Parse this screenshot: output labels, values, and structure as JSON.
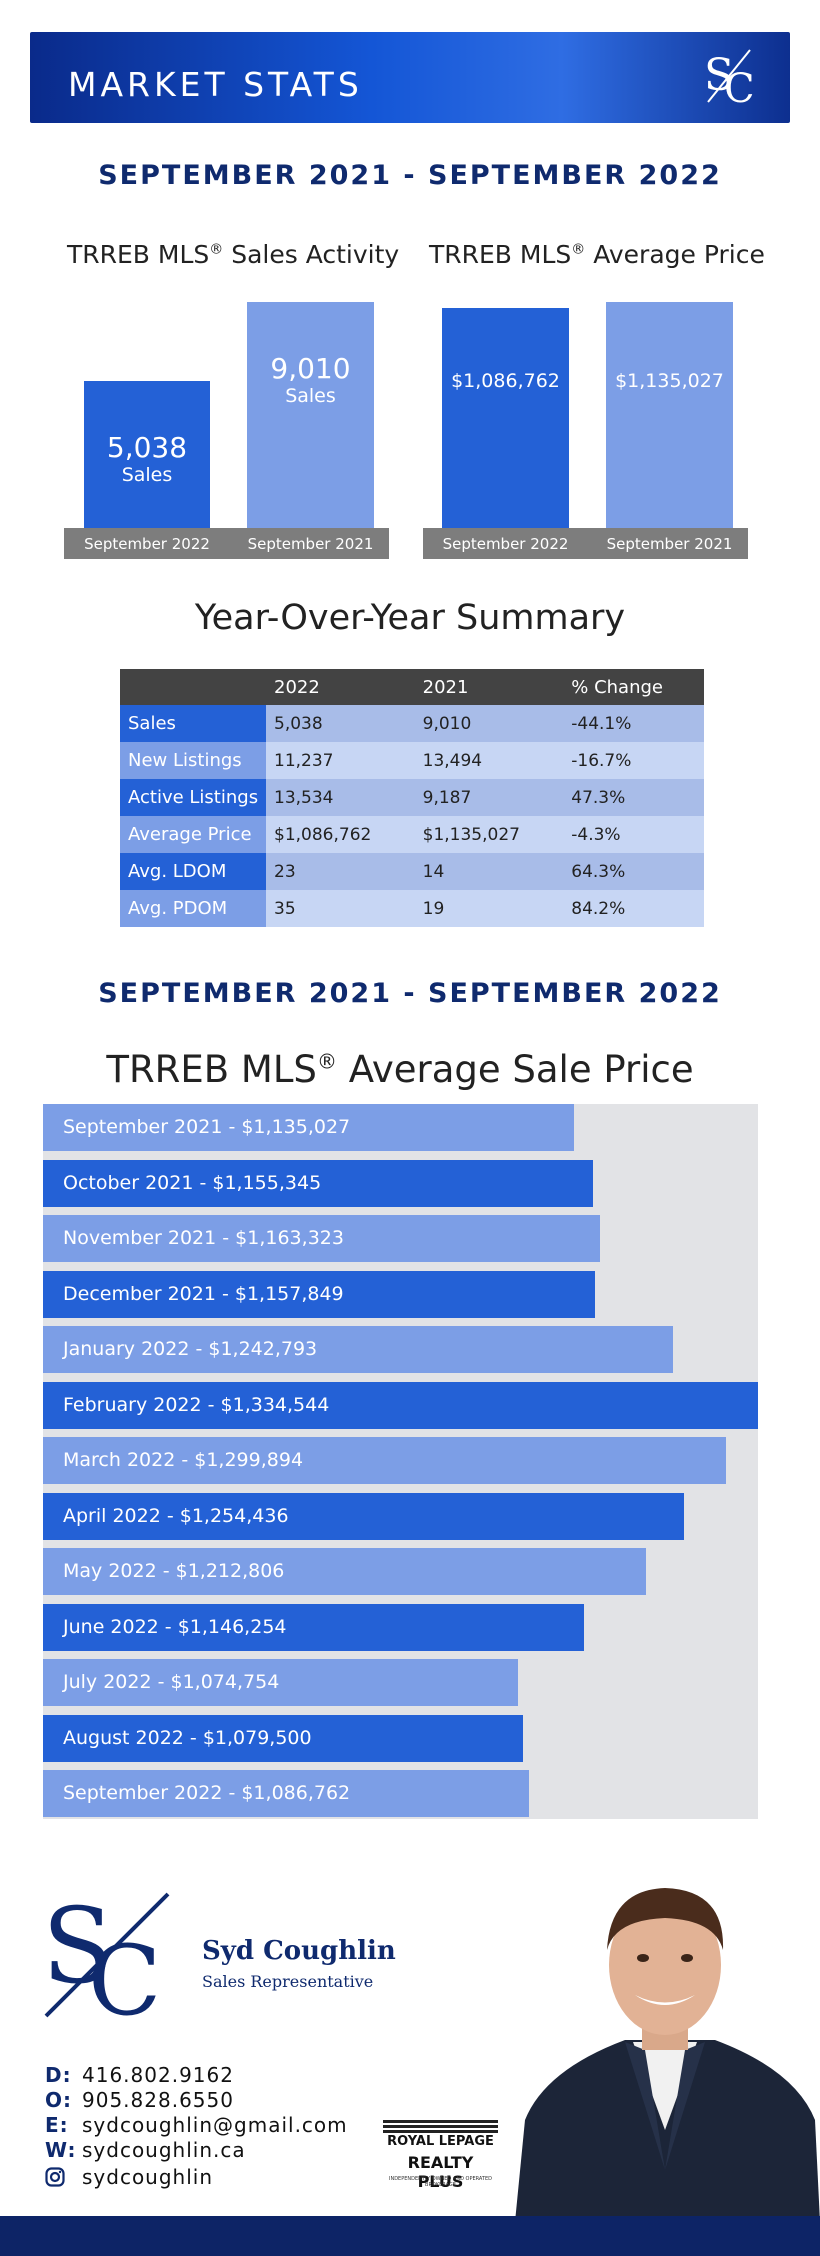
{
  "header": {
    "title": "MARKET STATS"
  },
  "period_labels": [
    "SEPTEMBER 2021 - SEPTEMBER 2022",
    "SEPTEMBER 2021 - SEPTEMBER 2022"
  ],
  "sales_activity": {
    "title": "TRREB MLS",
    "title_sup": "®",
    "title_rest": " Sales Activity",
    "unit": "Sales",
    "bars": [
      {
        "period": "September 2022",
        "value": 5038,
        "display": "5,038"
      },
      {
        "period": "September 2021",
        "value": 9010,
        "display": "9,010"
      }
    ]
  },
  "average_price": {
    "title": "TRREB MLS",
    "title_sup": "®",
    "title_rest": " Average Price",
    "bars": [
      {
        "period": "September 2022",
        "value": 1086762,
        "display": "$1,086,762"
      },
      {
        "period": "September 2021",
        "value": 1135027,
        "display": "$1,135,027"
      }
    ]
  },
  "yoy": {
    "title": "Year-Over-Year Summary",
    "headers": [
      "",
      "2022",
      "2021",
      "% Change"
    ],
    "rows": [
      {
        "label": "Sales",
        "y2022": "5,038",
        "y2021": "9,010",
        "change": "-44.1%"
      },
      {
        "label": "New Listings",
        "y2022": "11,237",
        "y2021": "13,494",
        "change": "-16.7%"
      },
      {
        "label": "Active Listings",
        "y2022": "13,534",
        "y2021": "9,187",
        "change": "47.3%"
      },
      {
        "label": "Average Price",
        "y2022": "$1,086,762",
        "y2021": "$1,135,027",
        "change": "-4.3%"
      },
      {
        "label": "Avg. LDOM",
        "y2022": "23",
        "y2021": "14",
        "change": "64.3%"
      },
      {
        "label": "Avg. PDOM",
        "y2022": "35",
        "y2021": "19",
        "change": "84.2%"
      }
    ]
  },
  "chart_data": {
    "type": "bar",
    "orientation": "horizontal",
    "title": "TRREB MLS® Average Sale Price",
    "title_main": "TRREB MLS",
    "title_sup": "®",
    "title_rest": " Average Sale Price",
    "xlim": [
      0,
      1334544
    ],
    "colors": {
      "dark": "#2461d6",
      "light": "#7c9ee6",
      "background": "#e2e3e6"
    },
    "bars": [
      {
        "label": "September 2021 - $1,135,027",
        "value": 1135027
      },
      {
        "label": "October 2021 - $1,155,345",
        "value": 1155345
      },
      {
        "label": "November 2021 - $1,163,323",
        "value": 1163323
      },
      {
        "label": "December 2021 - $1,157,849",
        "value": 1157849
      },
      {
        "label": "January 2022 - $1,242,793",
        "value": 1242793
      },
      {
        "label": "February 2022 - $1,334,544",
        "value": 1334544
      },
      {
        "label": "March 2022 - $1,299,894",
        "value": 1299894
      },
      {
        "label": "April 2022 - $1,254,436",
        "value": 1254436
      },
      {
        "label": "May 2022 - $1,212,806",
        "value": 1212806
      },
      {
        "label": "June 2022 - $1,146,254",
        "value": 1146254
      },
      {
        "label": "July 2022 - $1,074,754",
        "value": 1074754
      },
      {
        "label": "August 2022 - $1,079,500",
        "value": 1079500
      },
      {
        "label": "September 2022 - $1,086,762",
        "value": 1086762
      }
    ]
  },
  "agent": {
    "name": "Syd Coughlin",
    "role": "Sales Representative",
    "contacts": [
      {
        "key": "D:",
        "value": "416.802.9162"
      },
      {
        "key": "O:",
        "value": "905.828.6550"
      },
      {
        "key": "E:",
        "value": "sydcoughlin@gmail.com"
      },
      {
        "key": "W:",
        "value": "sydcoughlin.ca"
      },
      {
        "key": "instagram-icon",
        "value": "sydcoughlin"
      }
    ]
  },
  "brokerage": {
    "line1": "ROYAL LEPAGE",
    "line2": "REALTY PLUS",
    "tagline": "INDEPENDENTLY OWNED AND OPERATED BROKERAGE"
  },
  "colors": {
    "navy": "#0d2466",
    "accent_blue": "#2461d6",
    "light_blue": "#7c9ee6"
  }
}
